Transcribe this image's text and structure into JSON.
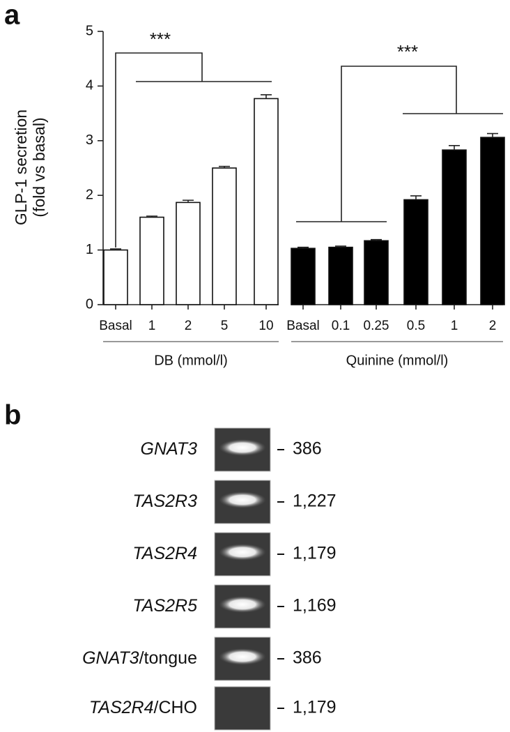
{
  "panel_a": {
    "letter": "a"
  },
  "chart_data": {
    "type": "bar",
    "ylabel": [
      "GLP-1 secretion",
      "(fold vs basal)"
    ],
    "ylim": [
      0,
      5
    ],
    "yticks": [
      0,
      1,
      2,
      3,
      4,
      5
    ],
    "grid": false,
    "groups": [
      {
        "label": "DB (mmol/l)",
        "color": "#ffffff",
        "categories": [
          "Basal",
          "1",
          "2",
          "5",
          "10"
        ],
        "values": [
          1.0,
          1.6,
          1.87,
          2.5,
          3.77
        ],
        "errors": [
          0.02,
          0.02,
          0.04,
          0.03,
          0.07
        ]
      },
      {
        "label": "Quinine (mmol/l)",
        "color": "#000000",
        "categories": [
          "Basal",
          "0.1",
          "0.25",
          "0.5",
          "1",
          "2"
        ],
        "values": [
          1.03,
          1.05,
          1.17,
          1.92,
          2.83,
          3.06
        ],
        "errors": [
          0.02,
          0.02,
          0.02,
          0.07,
          0.08,
          0.07
        ]
      }
    ],
    "annotations": [
      "***",
      "***"
    ]
  },
  "panel_b": {
    "letter": "b",
    "rows": [
      {
        "gene": "GNAT3",
        "suffix": "",
        "size": "386",
        "band": true
      },
      {
        "gene": "TAS2R3",
        "suffix": "",
        "size": "1,227",
        "band": true
      },
      {
        "gene": "TAS2R4",
        "suffix": "",
        "size": "1,179",
        "band": true
      },
      {
        "gene": "TAS2R5",
        "suffix": "",
        "size": "1,169",
        "band": true
      },
      {
        "gene": "GNAT3",
        "suffix": "/tongue",
        "size": "386",
        "band": true
      },
      {
        "gene": "TAS2R4",
        "suffix": "/CHO",
        "size": "1,179",
        "band": false
      }
    ]
  }
}
